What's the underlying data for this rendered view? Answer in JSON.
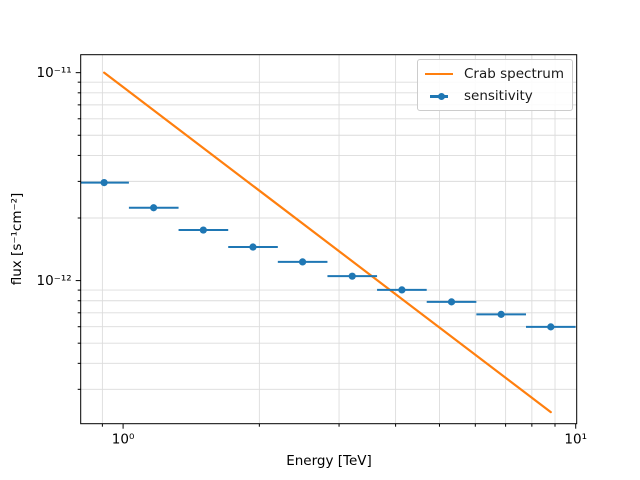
{
  "chart_data": {
    "type": "line+errorbar",
    "title": "",
    "xlabel": "Energy [TeV]",
    "ylabel": "flux [s⁻¹cm⁻²]",
    "x_scale": "log",
    "y_scale": "log",
    "xlim": [
      0.806,
      10.05
    ],
    "ylim": [
      2.05e-13,
      1.22e-11
    ],
    "x_major_ticks": [
      {
        "value": 1,
        "label": "10⁰"
      },
      {
        "value": 10,
        "label": "10¹"
      }
    ],
    "y_major_ticks": [
      {
        "value": 1e-11,
        "label": "10⁻¹¹"
      },
      {
        "value": 1e-12,
        "label": "10⁻¹²"
      }
    ],
    "x_minor_ticks": [
      0.9,
      2,
      3,
      4,
      5,
      6,
      7,
      8,
      9
    ],
    "y_minor_ticks": [
      3e-13,
      4e-13,
      5e-13,
      6e-13,
      7e-13,
      8e-13,
      9e-13,
      2e-12,
      3e-12,
      4e-12,
      5e-12,
      6e-12,
      7e-12,
      8e-12,
      9e-12
    ],
    "grid": {
      "which": "minor",
      "color": "#dcdcdc",
      "linewidth": 0.9
    },
    "series": [
      {
        "name": "Crab spectrum",
        "type": "line",
        "color": "#ff7f0e",
        "x": [
          0.908,
          8.809
        ],
        "y": [
          1e-11,
          2.33e-13
        ],
        "power_law_index": -1.65
      },
      {
        "name": "sensitivity",
        "type": "errorbar",
        "color": "#1f77b4",
        "bin_edges_tev": [
          0.8,
          1.03,
          1.326,
          1.707,
          2.197,
          2.828,
          3.64,
          4.686,
          6.032,
          7.765,
          9.995
        ],
        "points": [
          {
            "e_center": 0.908,
            "e_lo": 0.8,
            "e_hi": 1.03,
            "flux": 2.96e-12
          },
          {
            "e_center": 1.168,
            "e_lo": 1.03,
            "e_hi": 1.326,
            "flux": 2.24e-12
          },
          {
            "e_center": 1.504,
            "e_lo": 1.326,
            "e_hi": 1.707,
            "flux": 1.75e-12
          },
          {
            "e_center": 1.936,
            "e_lo": 1.707,
            "e_hi": 2.197,
            "flux": 1.45e-12
          },
          {
            "e_center": 2.492,
            "e_lo": 2.197,
            "e_hi": 2.828,
            "flux": 1.23e-12
          },
          {
            "e_center": 3.208,
            "e_lo": 2.828,
            "e_hi": 3.64,
            "flux": 1.05e-12
          },
          {
            "e_center": 4.13,
            "e_lo": 3.64,
            "e_hi": 4.686,
            "flux": 9.02e-13
          },
          {
            "e_center": 5.316,
            "e_lo": 4.686,
            "e_hi": 6.032,
            "flux": 7.9e-13
          },
          {
            "e_center": 6.843,
            "e_lo": 6.032,
            "e_hi": 7.765,
            "flux": 6.88e-13
          },
          {
            "e_center": 8.809,
            "e_lo": 7.765,
            "e_hi": 9.995,
            "flux": 5.99e-13
          }
        ]
      }
    ],
    "legend": {
      "position": "upper right",
      "entries": [
        "Crab spectrum",
        "sensitivity"
      ]
    }
  }
}
